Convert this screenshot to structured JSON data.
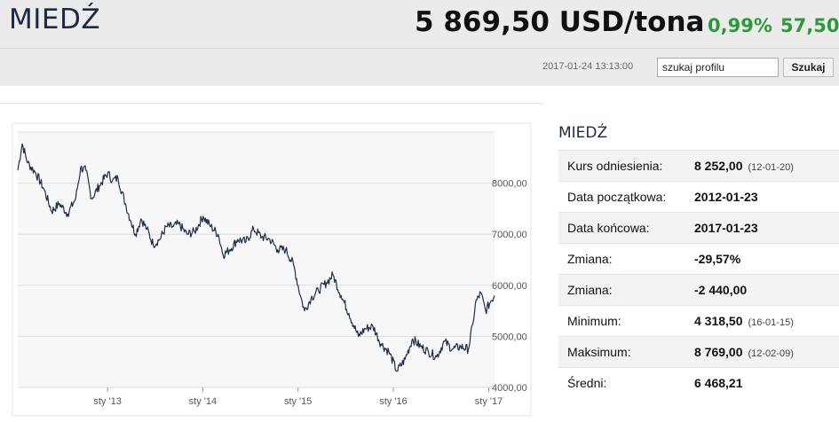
{
  "header": {
    "title": "MIEDŹ",
    "price": "5 869,50 USD/tona",
    "change_pct": "0,99%",
    "change_abs": "57,50",
    "timestamp": "2017-01-24 13:13:00"
  },
  "search": {
    "value": "szukaj profilu",
    "button_label": "Szukaj"
  },
  "info": {
    "title": "MIEDŹ",
    "rows": [
      {
        "label": "Kurs odniesienia:",
        "value": "8 252,00",
        "date": "(12-01-20)"
      },
      {
        "label": "Data początkowa:",
        "value": "2012-01-23",
        "date": ""
      },
      {
        "label": "Data końcowa:",
        "value": "2017-01-23",
        "date": ""
      },
      {
        "label": "Zmiana:",
        "value": "-29,57%",
        "date": ""
      },
      {
        "label": "Zmiana:",
        "value": "-2 440,00",
        "date": ""
      },
      {
        "label": "Minimum:",
        "value": "4 318,50",
        "date": "(16-01-15)"
      },
      {
        "label": "Maksimum:",
        "value": "8 769,00",
        "date": "(12-02-09)"
      },
      {
        "label": "Średni:",
        "value": "6 468,21",
        "date": ""
      }
    ]
  },
  "colors": {
    "line": "#1f2d4e",
    "positive": "#2b9a3a",
    "title": "#1c2a45"
  },
  "chart_data": {
    "type": "line",
    "title": "",
    "xlabel": "",
    "ylabel": "",
    "ylim": [
      4000,
      9000
    ],
    "xlim": [
      "2012-01-23",
      "2017-01-23"
    ],
    "yticks": [
      4000,
      5000,
      6000,
      7000,
      8000
    ],
    "ytick_labels": [
      "4000,00",
      "5000,00",
      "6000,00",
      "7000,00",
      "8000,00"
    ],
    "xticks": [
      "2013-01-01",
      "2014-01-01",
      "2015-01-01",
      "2016-01-01",
      "2017-01-01"
    ],
    "xtick_labels": [
      "sty '13",
      "sty '14",
      "sty '15",
      "sty '16",
      "sty '17"
    ],
    "grid": true,
    "series": [
      {
        "x": [
          "2012-01-23",
          "2012-02-09",
          "2012-03-01",
          "2012-04-01",
          "2012-05-01",
          "2012-06-01",
          "2012-07-01",
          "2012-08-01",
          "2012-09-01",
          "2012-09-20",
          "2012-10-10",
          "2012-11-01",
          "2012-12-01",
          "2013-01-02",
          "2013-01-20",
          "2013-02-10",
          "2013-03-10",
          "2013-04-01",
          "2013-04-18",
          "2013-05-10",
          "2013-06-01",
          "2013-06-25",
          "2013-07-20",
          "2013-08-15",
          "2013-09-10",
          "2013-10-01",
          "2013-11-01",
          "2013-12-01",
          "2014-01-02",
          "2014-02-01",
          "2014-03-01",
          "2014-03-20",
          "2014-04-15",
          "2014-05-15",
          "2014-06-15",
          "2014-07-15",
          "2014-08-15",
          "2014-09-15",
          "2014-10-15",
          "2014-11-15",
          "2014-12-15",
          "2015-01-10",
          "2015-01-26",
          "2015-02-20",
          "2015-03-20",
          "2015-04-20",
          "2015-05-15",
          "2015-06-15",
          "2015-07-15",
          "2015-08-20",
          "2015-09-15",
          "2015-10-15",
          "2015-11-15",
          "2015-12-15",
          "2016-01-15",
          "2016-02-15",
          "2016-03-15",
          "2016-04-15",
          "2016-05-15",
          "2016-06-15",
          "2016-07-15",
          "2016-08-15",
          "2016-09-15",
          "2016-10-15",
          "2016-11-01",
          "2016-11-11",
          "2016-12-01",
          "2016-12-20",
          "2017-01-10",
          "2017-01-23"
        ],
        "y": [
          8250,
          8769,
          8400,
          8200,
          7900,
          7450,
          7600,
          7400,
          7700,
          8300,
          8250,
          7700,
          7950,
          8200,
          8050,
          8100,
          7600,
          7250,
          7000,
          7300,
          7100,
          6800,
          6900,
          7150,
          7150,
          7200,
          7000,
          7050,
          7350,
          7150,
          7000,
          6600,
          6700,
          6900,
          6850,
          7100,
          6950,
          6900,
          6700,
          6700,
          6400,
          5800,
          5500,
          5750,
          5900,
          6050,
          6200,
          5800,
          5450,
          5000,
          5150,
          5200,
          4850,
          4700,
          4318,
          4550,
          4950,
          4800,
          4700,
          4600,
          4900,
          4750,
          4800,
          4750,
          5250,
          5650,
          5850,
          5500,
          5700,
          5800
        ]
      }
    ]
  }
}
